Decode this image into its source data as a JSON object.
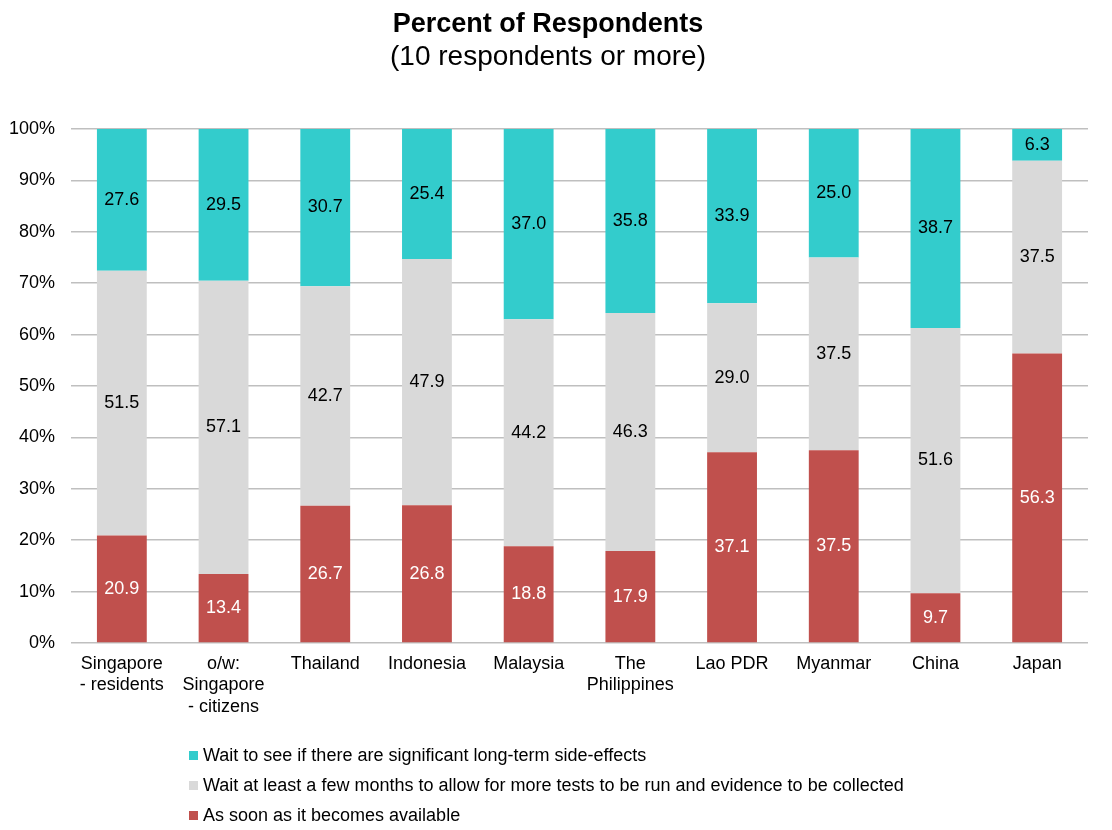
{
  "chart_data": {
    "type": "bar",
    "title": "Percent of Respondents",
    "subtitle": "(10 respondents or more)",
    "categories": [
      "Singapore - residents",
      "o/w: Singapore - citizens",
      "Thailand",
      "Indonesia",
      "Malaysia",
      "The Philippines",
      "Lao PDR",
      "Myanmar",
      "China",
      "Japan"
    ],
    "series": [
      {
        "name": "As soon as it becomes available",
        "color": "#c0504d",
        "values": [
          20.9,
          13.4,
          26.7,
          26.8,
          18.8,
          17.9,
          37.1,
          37.5,
          9.7,
          56.3
        ],
        "value_labels": [
          "20.9",
          "13.4",
          "26.7",
          "26.8",
          "18.8",
          "17.9",
          "37.1",
          "37.5",
          "9.7",
          "56.3"
        ]
      },
      {
        "name": "Wait at least a few months to allow for more tests to be run and evidence to be collected",
        "color": "#d9d9d9",
        "values": [
          51.5,
          57.1,
          42.7,
          47.9,
          44.2,
          46.3,
          29.0,
          37.5,
          51.6,
          37.5
        ],
        "value_labels": [
          "51.5",
          "57.1",
          "42.7",
          "47.9",
          "44.2",
          "46.3",
          "29.0",
          "37.5",
          "51.6",
          "37.5"
        ]
      },
      {
        "name": "Wait to see if there are significant long-term side-effects",
        "color": "#33cccc",
        "values": [
          27.6,
          29.5,
          30.7,
          25.4,
          37.0,
          35.8,
          33.9,
          25.0,
          38.7,
          6.3
        ],
        "value_labels": [
          "27.6",
          "29.5",
          "30.7",
          "25.4",
          "37.0",
          "35.8",
          "33.9",
          "25.0",
          "38.7",
          "6.3"
        ]
      }
    ],
    "stacked": true,
    "ylim": [
      0,
      100
    ],
    "yticks": [
      {
        "value": 0,
        "label": "0%"
      },
      {
        "value": 10,
        "label": "10%"
      },
      {
        "value": 20,
        "label": "20%"
      },
      {
        "value": 30,
        "label": "30%"
      },
      {
        "value": 40,
        "label": "40%"
      },
      {
        "value": 50,
        "label": "50%"
      },
      {
        "value": 60,
        "label": "60%"
      },
      {
        "value": 70,
        "label": "70%"
      },
      {
        "value": 80,
        "label": "80%"
      },
      {
        "value": 90,
        "label": "90%"
      },
      {
        "value": 100,
        "label": "100%"
      }
    ],
    "grid": "y",
    "legend": "bottom"
  }
}
